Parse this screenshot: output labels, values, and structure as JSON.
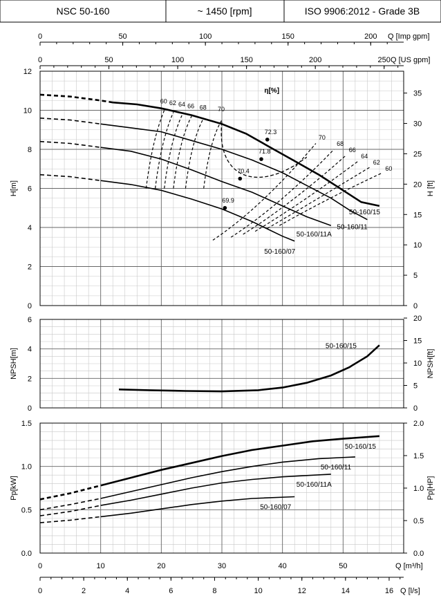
{
  "header": {
    "model": "NSC 50-160",
    "speed": "~ 1450 [rpm]",
    "standard": "ISO 9906:2012 - Grade 3B"
  },
  "chart_data": [
    {
      "type": "line",
      "name": "head",
      "ylabel_left": "H[m]",
      "ylabel_right": "H [ft]",
      "ylim": [
        0,
        12
      ],
      "yticks": [
        0,
        2,
        4,
        6,
        8,
        10,
        12
      ],
      "yticks_right": [
        0,
        5,
        10,
        15,
        20,
        25,
        30,
        35
      ],
      "efficiency_label": "η[%]",
      "series": [
        {
          "name": "50-160/15",
          "x_dashed": [
            0,
            5,
            10,
            12
          ],
          "y_dashed": [
            10.8,
            10.7,
            10.5,
            10.4
          ],
          "x": [
            12,
            16,
            20,
            25,
            30,
            34,
            38,
            42,
            46,
            50,
            53,
            56
          ],
          "y": [
            10.4,
            10.3,
            10.1,
            9.75,
            9.3,
            8.8,
            8.1,
            7.4,
            6.7,
            5.9,
            5.3,
            5.1
          ]
        },
        {
          "name": "50-160/11",
          "x_dashed": [
            0,
            5,
            10
          ],
          "y_dashed": [
            9.6,
            9.5,
            9.3
          ],
          "x": [
            10,
            15,
            20,
            25,
            30,
            35,
            40,
            44,
            48,
            51,
            54
          ],
          "y": [
            9.3,
            9.1,
            8.9,
            8.45,
            8.0,
            7.45,
            6.8,
            6.15,
            5.5,
            4.9,
            4.4
          ]
        },
        {
          "name": "50-160/11A",
          "x_dashed": [
            0,
            5,
            10
          ],
          "y_dashed": [
            8.4,
            8.3,
            8.1
          ],
          "x": [
            10,
            15,
            20,
            25,
            30,
            35,
            40,
            44,
            48
          ],
          "y": [
            8.1,
            7.9,
            7.5,
            6.95,
            6.35,
            5.8,
            5.1,
            4.55,
            4.1
          ]
        },
        {
          "name": "50-160/07",
          "x_dashed": [
            0,
            5,
            10
          ],
          "y_dashed": [
            6.7,
            6.6,
            6.4
          ],
          "x": [
            10,
            15,
            20,
            25,
            30,
            35,
            40,
            42
          ],
          "y": [
            6.4,
            6.2,
            5.9,
            5.45,
            4.95,
            4.3,
            3.55,
            3.3
          ]
        }
      ],
      "efficiency_points": [
        {
          "label": "72.3",
          "x": 37.5,
          "y": 8.5
        },
        {
          "label": "71.8",
          "x": 36.5,
          "y": 7.5
        },
        {
          "label": "70.4",
          "x": 33,
          "y": 6.5
        },
        {
          "label": "69.9",
          "x": 30.5,
          "y": 5.0
        }
      ],
      "iso_efficiency_labels": [
        "60",
        "62",
        "64",
        "66",
        "68",
        "70",
        "70",
        "68",
        "66",
        "64",
        "62",
        "60"
      ]
    },
    {
      "type": "line",
      "name": "npsh",
      "ylabel_left": "NPSH[m]",
      "ylabel_right": "NPSH[ft]",
      "ylim": [
        0,
        6
      ],
      "yticks": [
        0,
        2,
        4,
        6
      ],
      "yticks_right": [
        0,
        5,
        10,
        15,
        20
      ],
      "series": [
        {
          "name": "50-160/15",
          "x": [
            13,
            18,
            24,
            30,
            36,
            40,
            44,
            48,
            51,
            54,
            56
          ],
          "y": [
            1.25,
            1.2,
            1.15,
            1.12,
            1.2,
            1.38,
            1.7,
            2.2,
            2.75,
            3.5,
            4.25
          ]
        }
      ]
    },
    {
      "type": "line",
      "name": "power",
      "ylabel_left": "Pp[kW]",
      "ylabel_right": "Pp[HP]",
      "ylim": [
        0,
        1.5
      ],
      "yticks": [
        0.0,
        0.5,
        1.0,
        1.5
      ],
      "yticks_right": [
        0.0,
        0.5,
        1.0,
        1.5,
        2.0
      ],
      "yticks_labels": [
        "0.0",
        "0.5",
        "1.0",
        "1.5"
      ],
      "yticks_right_labels": [
        "0.0",
        "0.5",
        "1.0",
        "1.5",
        "2.0"
      ],
      "series": [
        {
          "name": "50-160/15",
          "x_dashed": [
            0,
            5,
            10
          ],
          "y_dashed": [
            0.62,
            0.69,
            0.78
          ],
          "x": [
            10,
            15,
            20,
            25,
            30,
            35,
            40,
            45,
            50,
            56
          ],
          "y": [
            0.78,
            0.87,
            0.96,
            1.04,
            1.12,
            1.19,
            1.24,
            1.29,
            1.32,
            1.35
          ]
        },
        {
          "name": "50-160/11",
          "x_dashed": [
            0,
            5,
            10
          ],
          "y_dashed": [
            0.5,
            0.56,
            0.63
          ],
          "x": [
            10,
            15,
            20,
            25,
            30,
            35,
            40,
            46,
            52
          ],
          "y": [
            0.63,
            0.71,
            0.79,
            0.87,
            0.94,
            1.0,
            1.05,
            1.09,
            1.11
          ]
        },
        {
          "name": "50-160/11A",
          "x_dashed": [
            0,
            5,
            10
          ],
          "y_dashed": [
            0.43,
            0.48,
            0.55
          ],
          "x": [
            10,
            15,
            20,
            25,
            30,
            35,
            40,
            48
          ],
          "y": [
            0.55,
            0.61,
            0.68,
            0.75,
            0.81,
            0.85,
            0.88,
            0.91
          ]
        },
        {
          "name": "50-160/07",
          "x_dashed": [
            0,
            5,
            10
          ],
          "y_dashed": [
            0.35,
            0.38,
            0.42
          ],
          "x": [
            10,
            15,
            20,
            25,
            30,
            35,
            42
          ],
          "y": [
            0.42,
            0.46,
            0.51,
            0.56,
            0.6,
            0.63,
            0.65
          ]
        }
      ]
    }
  ],
  "axes": {
    "imp_gpm": {
      "label": "Q [Imp gpm]",
      "ticks": [
        "0",
        "50",
        "100",
        "150",
        "200"
      ]
    },
    "us_gpm": {
      "label": "Q [US gpm]",
      "ticks": [
        "0",
        "50",
        "100",
        "150",
        "200",
        "250"
      ]
    },
    "m3h": {
      "label": "Q [m³/h]",
      "ticks": [
        "0",
        "10",
        "20",
        "30",
        "40",
        "50"
      ]
    },
    "ls": {
      "label": "Q [l/s]",
      "ticks": [
        "0",
        "2",
        "4",
        "6",
        "8",
        "10",
        "12",
        "14",
        "16"
      ]
    }
  }
}
